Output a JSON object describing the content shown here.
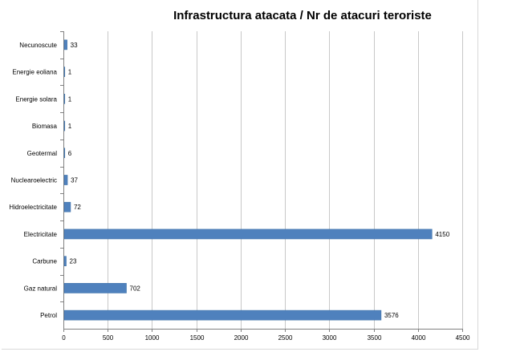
{
  "chart_data": {
    "type": "bar",
    "orientation": "horizontal",
    "title": "Infrastructura atacata / Nr de atacuri teroriste",
    "xlabel": "",
    "ylabel": "",
    "categories": [
      "Necunoscute",
      "Energie eoliana",
      "Energie solara",
      "Biomasa",
      "Geotermal",
      "Nuclearoelectric",
      "Hidroelectricitate",
      "Electricitate",
      "Carbune",
      "Gaz natural",
      "Petrol"
    ],
    "values": [
      33,
      1,
      1,
      1,
      6,
      37,
      72,
      4150,
      23,
      702,
      3576
    ],
    "xlim": [
      0,
      4500
    ],
    "xticks": [
      0,
      500,
      1000,
      1500,
      2000,
      2500,
      3000,
      3500,
      4000,
      4500
    ],
    "grid": true,
    "legend": "none",
    "bar_color": "#4f81bd"
  }
}
